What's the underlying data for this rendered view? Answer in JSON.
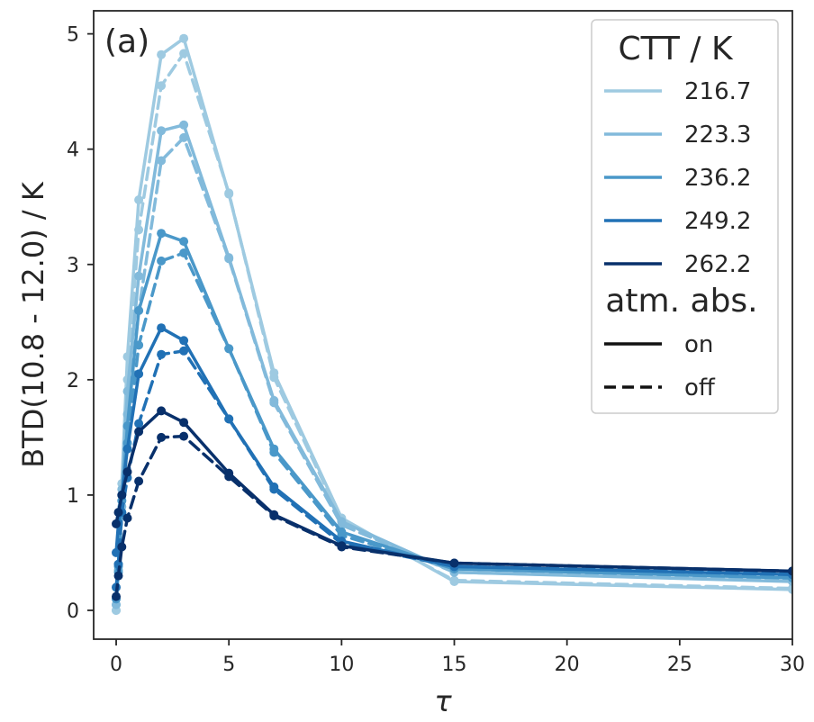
{
  "chart_data": {
    "type": "line",
    "panel_label": "(a)",
    "xlabel": "τ",
    "ylabel": "BTD(10.8 - 12.0) / K",
    "xlim": [
      -1,
      30
    ],
    "ylim": [
      -0.25,
      5.2
    ],
    "xticks": [
      0,
      5,
      10,
      15,
      20,
      25,
      30
    ],
    "yticks": [
      0,
      1,
      2,
      3,
      4,
      5
    ],
    "x": [
      0,
      0.1,
      0.25,
      0.5,
      1,
      2,
      3,
      5,
      7,
      10,
      15,
      30
    ],
    "legend": {
      "placement": "top-right",
      "ctt_title": "CTT / K",
      "atm_title": "atm. abs.",
      "style_entries": [
        {
          "label": "on",
          "dash": "solid"
        },
        {
          "label": "off",
          "dash": "dashed"
        }
      ]
    },
    "series": [
      {
        "name": "216.7",
        "color": "#9ecae1",
        "on": [
          0.0,
          0.4,
          1.1,
          2.2,
          3.56,
          4.82,
          4.96,
          3.61,
          2.06,
          0.8,
          0.25,
          0.18
        ],
        "off": [
          0.0,
          0.35,
          0.95,
          2.0,
          3.3,
          4.55,
          4.83,
          3.62,
          2.02,
          0.78,
          0.26,
          0.19
        ]
      },
      {
        "name": "223.3",
        "color": "#82badb",
        "on": [
          0.05,
          0.4,
          1.05,
          1.9,
          2.9,
          4.16,
          4.21,
          3.06,
          1.82,
          0.77,
          0.33,
          0.25
        ],
        "off": [
          0.05,
          0.35,
          0.9,
          1.7,
          2.6,
          3.9,
          4.1,
          3.05,
          1.8,
          0.74,
          0.33,
          0.26
        ]
      },
      {
        "name": "236.2",
        "color": "#4a98c9",
        "on": [
          0.1,
          0.38,
          0.95,
          1.6,
          2.6,
          3.27,
          3.2,
          2.27,
          1.4,
          0.68,
          0.36,
          0.28
        ],
        "off": [
          0.1,
          0.33,
          0.85,
          1.45,
          2.3,
          3.03,
          3.1,
          2.27,
          1.37,
          0.65,
          0.36,
          0.29
        ]
      },
      {
        "name": "249.2",
        "color": "#2171b5",
        "on": [
          0.5,
          0.75,
          1.0,
          1.4,
          2.05,
          2.45,
          2.34,
          1.66,
          1.07,
          0.6,
          0.38,
          0.31
        ],
        "off": [
          0.2,
          0.4,
          0.85,
          1.15,
          1.62,
          2.22,
          2.25,
          1.66,
          1.05,
          0.58,
          0.38,
          0.32
        ]
      },
      {
        "name": "262.2",
        "color": "#08306b",
        "on": [
          0.75,
          0.85,
          1.0,
          1.2,
          1.55,
          1.73,
          1.63,
          1.19,
          0.83,
          0.56,
          0.41,
          0.34
        ],
        "off": [
          0.12,
          0.3,
          0.55,
          0.8,
          1.12,
          1.5,
          1.51,
          1.16,
          0.82,
          0.55,
          0.41,
          0.34
        ]
      }
    ]
  }
}
